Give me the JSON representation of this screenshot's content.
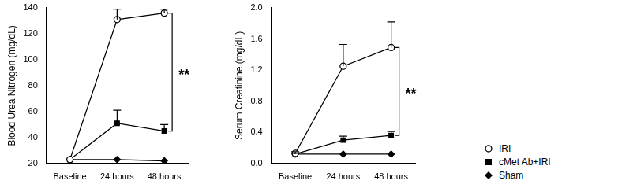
{
  "chart_data": [
    {
      "type": "line",
      "y_label": "Blood Urea Nitrogen (mg/dL)",
      "categories": [
        "Baseline",
        "24 hours",
        "48 hours"
      ],
      "series": [
        {
          "name": "IRI",
          "color": "#000000",
          "marker": "circle_open",
          "values": [
            23,
            131,
            136
          ],
          "errors": [
            0,
            8,
            3
          ]
        },
        {
          "name": "cMet Ab+IRI",
          "color": "#000000",
          "marker": "square",
          "values": [
            23,
            51,
            45
          ],
          "errors": [
            0,
            10,
            5
          ]
        },
        {
          "name": "Sham",
          "color": "#000000",
          "marker": "diamond",
          "values": [
            23,
            23,
            22
          ],
          "errors": [
            0,
            0,
            0
          ]
        }
      ],
      "ylim": [
        20,
        140
      ],
      "yticks": [
        20,
        40,
        60,
        80,
        100,
        120,
        140
      ],
      "grid": false,
      "annotation": {
        "text": "**",
        "between": [
          "IRI",
          "cMet Ab+IRI"
        ],
        "at": "48 hours"
      }
    },
    {
      "type": "line",
      "y_label": "Serum Creatinine (mg/dL)",
      "categories": [
        "Baseline",
        "24 hours",
        "48 hours"
      ],
      "series": [
        {
          "name": "IRI",
          "color": "#000000",
          "marker": "circle_open",
          "values": [
            0.13,
            1.25,
            1.49
          ],
          "errors": [
            0.02,
            0.28,
            0.33
          ]
        },
        {
          "name": "cMet Ab+IRI",
          "color": "#000000",
          "marker": "square",
          "values": [
            0.12,
            0.3,
            0.36
          ],
          "errors": [
            0.01,
            0.05,
            0.05
          ]
        },
        {
          "name": "Sham",
          "color": "#000000",
          "marker": "diamond",
          "values": [
            0.12,
            0.12,
            0.12
          ],
          "errors": [
            0,
            0,
            0
          ]
        }
      ],
      "ylim": [
        0,
        2.0
      ],
      "yticks": [
        {
          "value": 0,
          "label": "0.0"
        },
        0.4,
        0.8,
        1.2,
        1.6,
        {
          "value": 2,
          "label": "2.0"
        }
      ],
      "grid": false,
      "legend": "right",
      "annotation": {
        "text": "**",
        "between": [
          "IRI",
          "cMet Ab+IRI"
        ],
        "at": "48 hours"
      }
    }
  ]
}
